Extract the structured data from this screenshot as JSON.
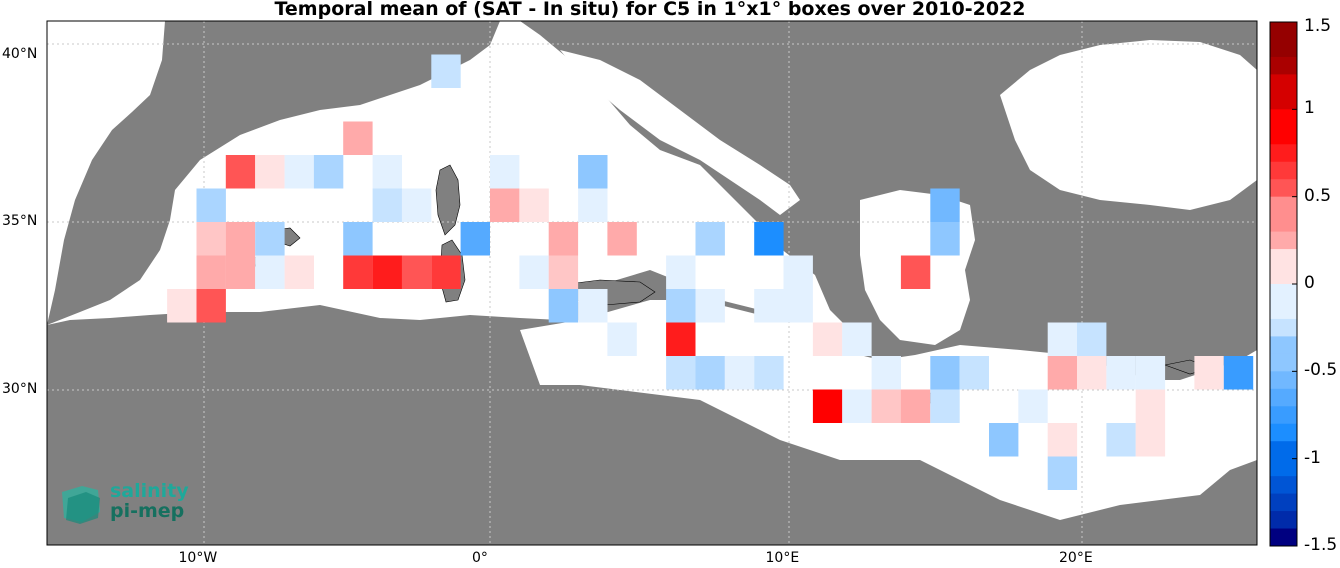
{
  "title": "Temporal mean of (SAT - In situ) for C5 in 1°x1° boxes over 2010-2022",
  "axes": {
    "lon_ticks": [
      {
        "value": -10,
        "label": "10°W"
      },
      {
        "value": 0,
        "label": "0°"
      },
      {
        "value": 10,
        "label": "10°E"
      },
      {
        "value": 20,
        "label": "20°E"
      }
    ],
    "lat_ticks": [
      {
        "value": 40,
        "label": "40°N"
      },
      {
        "value": 35,
        "label": "35°N"
      },
      {
        "value": 30,
        "label": "30°N"
      }
    ]
  },
  "colorbar": {
    "min": -1.5,
    "max": 1.5,
    "ticks": [
      {
        "value": 1.5,
        "label": "1.5"
      },
      {
        "value": 1,
        "label": "1"
      },
      {
        "value": 0.5,
        "label": "0.5"
      },
      {
        "value": 0,
        "label": "0"
      },
      {
        "value": -0.5,
        "label": "-0.5"
      },
      {
        "value": -1,
        "label": "-1"
      },
      {
        "value": -1.5,
        "label": "-1.5"
      }
    ]
  },
  "colors": {
    "land": "#808080",
    "sea": "#ffffff",
    "grid": "#c8c8c8"
  },
  "logo": {
    "line1": "salinity",
    "line2": "pi-mep"
  },
  "chart_data": {
    "type": "heatmap",
    "title": "Temporal mean of (SAT - In situ) for C5 in 1°x1° boxes over 2010-2022",
    "x_unit": "deg_lon",
    "y_unit": "deg_lat",
    "cells": [
      {
        "lon": -1.5,
        "lat": 39.5,
        "value": -0.25
      },
      {
        "lon": -4.5,
        "lat": 37.5,
        "value": 0.35
      },
      {
        "lon": -8.5,
        "lat": 36.5,
        "value": 0.55
      },
      {
        "lon": -7.5,
        "lat": 36.5,
        "value": 0.15
      },
      {
        "lon": -6.5,
        "lat": 36.5,
        "value": -0.1
      },
      {
        "lon": -5.5,
        "lat": 36.5,
        "value": -0.3
      },
      {
        "lon": -3.5,
        "lat": 36.5,
        "value": -0.1
      },
      {
        "lon": 0.5,
        "lat": 36.5,
        "value": -0.1
      },
      {
        "lon": 3.5,
        "lat": 36.5,
        "value": -0.45
      },
      {
        "lon": -9.5,
        "lat": 35.5,
        "value": -0.3
      },
      {
        "lon": -3.5,
        "lat": 35.5,
        "value": -0.25
      },
      {
        "lon": -2.5,
        "lat": 35.5,
        "value": -0.15
      },
      {
        "lon": 0.5,
        "lat": 35.5,
        "value": 0.3
      },
      {
        "lon": 1.5,
        "lat": 35.5,
        "value": 0.15
      },
      {
        "lon": 3.5,
        "lat": 35.5,
        "value": -0.1
      },
      {
        "lon": 15.5,
        "lat": 35.5,
        "value": -0.55
      },
      {
        "lon": -9.5,
        "lat": 34.5,
        "value": 0.2
      },
      {
        "lon": -8.5,
        "lat": 34.5,
        "value": 0.25
      },
      {
        "lon": -7.5,
        "lat": 34.5,
        "value": -0.3
      },
      {
        "lon": -4.5,
        "lat": 34.5,
        "value": -0.4
      },
      {
        "lon": -0.5,
        "lat": 34.5,
        "value": -0.6
      },
      {
        "lon": 2.5,
        "lat": 34.5,
        "value": 0.35
      },
      {
        "lon": 4.5,
        "lat": 34.5,
        "value": 0.3
      },
      {
        "lon": 7.5,
        "lat": 34.5,
        "value": -0.3
      },
      {
        "lon": 9.5,
        "lat": 34.5,
        "value": -0.85
      },
      {
        "lon": 15.5,
        "lat": 34.5,
        "value": -0.4
      },
      {
        "lon": -9.5,
        "lat": 33.5,
        "value": 0.3
      },
      {
        "lon": -8.5,
        "lat": 33.5,
        "value": 0.3
      },
      {
        "lon": -7.5,
        "lat": 33.5,
        "value": -0.1
      },
      {
        "lon": -6.5,
        "lat": 33.5,
        "value": 0.15
      },
      {
        "lon": -4.5,
        "lat": 33.5,
        "value": 0.7
      },
      {
        "lon": -3.5,
        "lat": 33.5,
        "value": 0.8
      },
      {
        "lon": -2.5,
        "lat": 33.5,
        "value": 0.55
      },
      {
        "lon": -1.5,
        "lat": 33.5,
        "value": 0.65
      },
      {
        "lon": 1.5,
        "lat": 33.5,
        "value": -0.1
      },
      {
        "lon": 2.5,
        "lat": 33.5,
        "value": 0.2
      },
      {
        "lon": 6.5,
        "lat": 33.5,
        "value": -0.1
      },
      {
        "lon": 10.5,
        "lat": 33.5,
        "value": -0.1
      },
      {
        "lon": 14.5,
        "lat": 33.5,
        "value": 0.55
      },
      {
        "lon": -10.5,
        "lat": 32.5,
        "value": 0.15
      },
      {
        "lon": -9.5,
        "lat": 32.5,
        "value": 0.6
      },
      {
        "lon": 2.5,
        "lat": 32.5,
        "value": -0.45
      },
      {
        "lon": 3.5,
        "lat": 32.5,
        "value": -0.1
      },
      {
        "lon": 6.5,
        "lat": 32.5,
        "value": -0.35
      },
      {
        "lon": 7.5,
        "lat": 32.5,
        "value": -0.1
      },
      {
        "lon": 9.5,
        "lat": 32.5,
        "value": -0.1
      },
      {
        "lon": 10.5,
        "lat": 32.5,
        "value": -0.1
      },
      {
        "lon": 4.5,
        "lat": 31.5,
        "value": -0.1
      },
      {
        "lon": 6.5,
        "lat": 31.5,
        "value": 0.75
      },
      {
        "lon": 11.5,
        "lat": 31.5,
        "value": 0.15
      },
      {
        "lon": 12.5,
        "lat": 31.5,
        "value": -0.1
      },
      {
        "lon": 19.5,
        "lat": 31.5,
        "value": -0.15
      },
      {
        "lon": 20.5,
        "lat": 31.5,
        "value": -0.25
      },
      {
        "lon": 6.5,
        "lat": 30.5,
        "value": -0.25
      },
      {
        "lon": 7.5,
        "lat": 30.5,
        "value": -0.35
      },
      {
        "lon": 8.5,
        "lat": 30.5,
        "value": -0.1
      },
      {
        "lon": 9.5,
        "lat": 30.5,
        "value": -0.25
      },
      {
        "lon": 13.5,
        "lat": 30.5,
        "value": -0.15
      },
      {
        "lon": 15.5,
        "lat": 30.5,
        "value": -0.4
      },
      {
        "lon": 16.5,
        "lat": 30.5,
        "value": -0.2
      },
      {
        "lon": 19.5,
        "lat": 30.5,
        "value": 0.3
      },
      {
        "lon": 20.5,
        "lat": 30.5,
        "value": 0.15
      },
      {
        "lon": 21.5,
        "lat": 30.5,
        "value": -0.1
      },
      {
        "lon": 22.5,
        "lat": 30.5,
        "value": -0.1
      },
      {
        "lon": 24.5,
        "lat": 30.5,
        "value": 0.15
      },
      {
        "lon": 25.5,
        "lat": 30.5,
        "value": -0.75
      },
      {
        "lon": 11.5,
        "lat": 29.5,
        "value": 0.85
      },
      {
        "lon": 12.5,
        "lat": 29.5,
        "value": -0.1
      },
      {
        "lon": 13.5,
        "lat": 29.5,
        "value": 0.2
      },
      {
        "lon": 14.5,
        "lat": 29.5,
        "value": 0.35
      },
      {
        "lon": 15.5,
        "lat": 29.5,
        "value": -0.25
      },
      {
        "lon": 18.5,
        "lat": 29.5,
        "value": -0.1
      },
      {
        "lon": 22.5,
        "lat": 29.5,
        "value": 0.15
      },
      {
        "lon": 17.5,
        "lat": 28.5,
        "value": -0.45
      },
      {
        "lon": 19.5,
        "lat": 28.5,
        "value": 0.15
      },
      {
        "lon": 21.5,
        "lat": 28.5,
        "value": -0.25
      },
      {
        "lon": 22.5,
        "lat": 28.5,
        "value": 0.15
      },
      {
        "lon": 19.5,
        "lat": 27.5,
        "value": -0.3
      }
    ]
  }
}
